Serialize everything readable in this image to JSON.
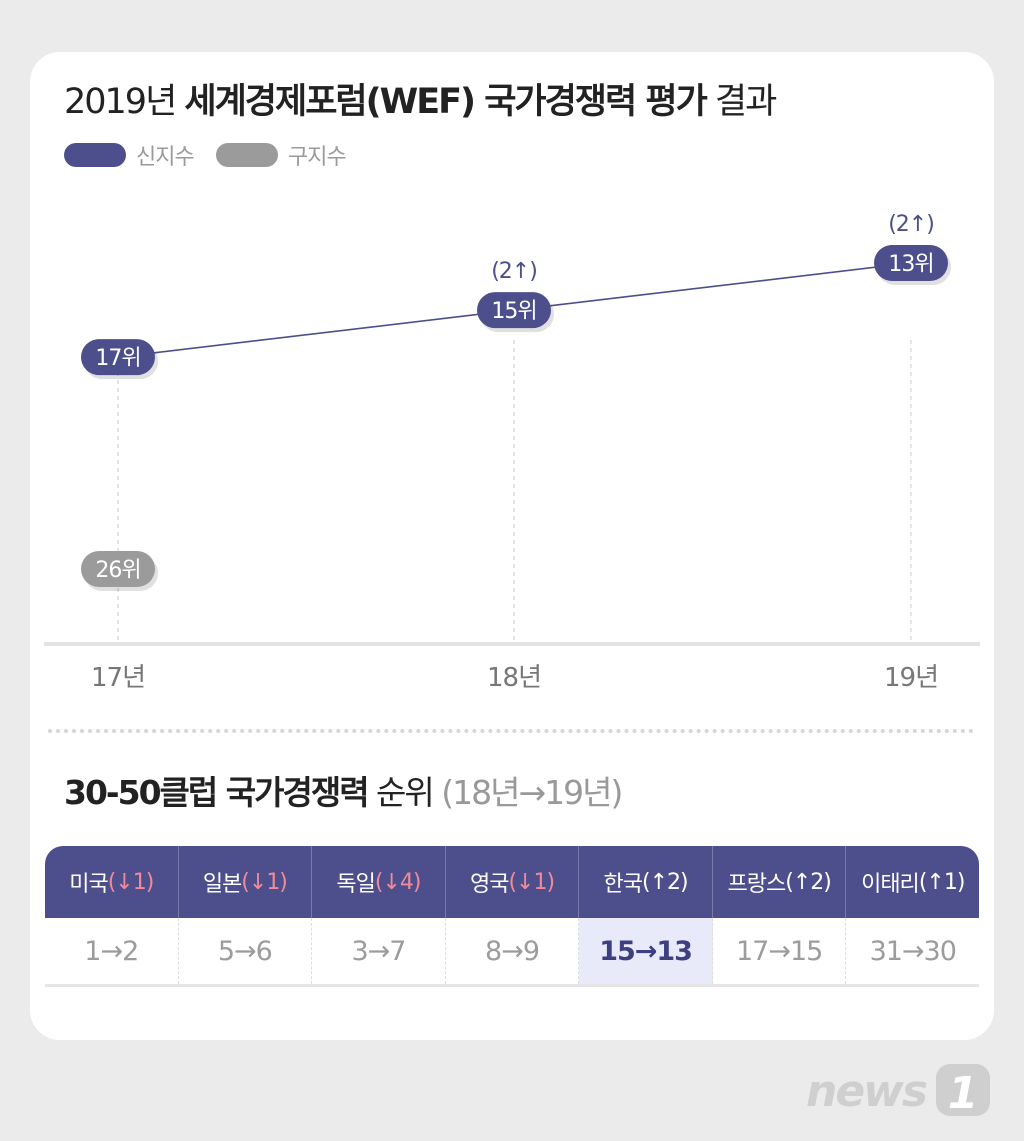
{
  "title": {
    "prefix": "2019년 ",
    "strong": "세계경제포럼(WEF) 국가경쟁력 평가",
    "suffix": " 결과"
  },
  "legend": [
    {
      "label": "신지수",
      "color": "#4d4f8c"
    },
    {
      "label": "구지수",
      "color": "#9b9b9b"
    }
  ],
  "chart_data": {
    "type": "line",
    "x": [
      "17년",
      "18년",
      "19년"
    ],
    "series": [
      {
        "name": "신지수",
        "values": [
          17,
          15,
          13
        ],
        "labels": [
          "17위",
          "15위",
          "13위"
        ],
        "changes": [
          null,
          "(2↑)",
          "(2↑)"
        ],
        "color": "#4d4f8c"
      },
      {
        "name": "구지수",
        "values": [
          26,
          null,
          null
        ],
        "labels": [
          "26위",
          null,
          null
        ],
        "changes": [
          null,
          null,
          null
        ],
        "color": "#9b9b9b"
      }
    ],
    "ylabel": "",
    "y_inverted": true,
    "grid": false
  },
  "ranking": {
    "title": {
      "strong": "30-50클럽 국가경쟁력",
      "rest": " 순위 ",
      "note": "(18년→19년)"
    },
    "highlight_color": "#e8eaf9",
    "columns": [
      {
        "country": "미국",
        "change": "(↓1)",
        "direction": "down",
        "ranks": "1→2"
      },
      {
        "country": "일본",
        "change": "(↓1)",
        "direction": "down",
        "ranks": "5→6"
      },
      {
        "country": "독일",
        "change": "(↓4)",
        "direction": "down",
        "ranks": "3→7"
      },
      {
        "country": "영국",
        "change": "(↓1)",
        "direction": "down",
        "ranks": "8→9"
      },
      {
        "country": "한국",
        "change": "(↑2)",
        "direction": "up",
        "ranks": "15→13",
        "highlight": true
      },
      {
        "country": "프랑스",
        "change": "(↑2)",
        "direction": "up",
        "ranks": "17→15"
      },
      {
        "country": "이태리",
        "change": "(↑1)",
        "direction": "up",
        "ranks": "31→30"
      }
    ]
  },
  "logo": {
    "text": "news1"
  }
}
